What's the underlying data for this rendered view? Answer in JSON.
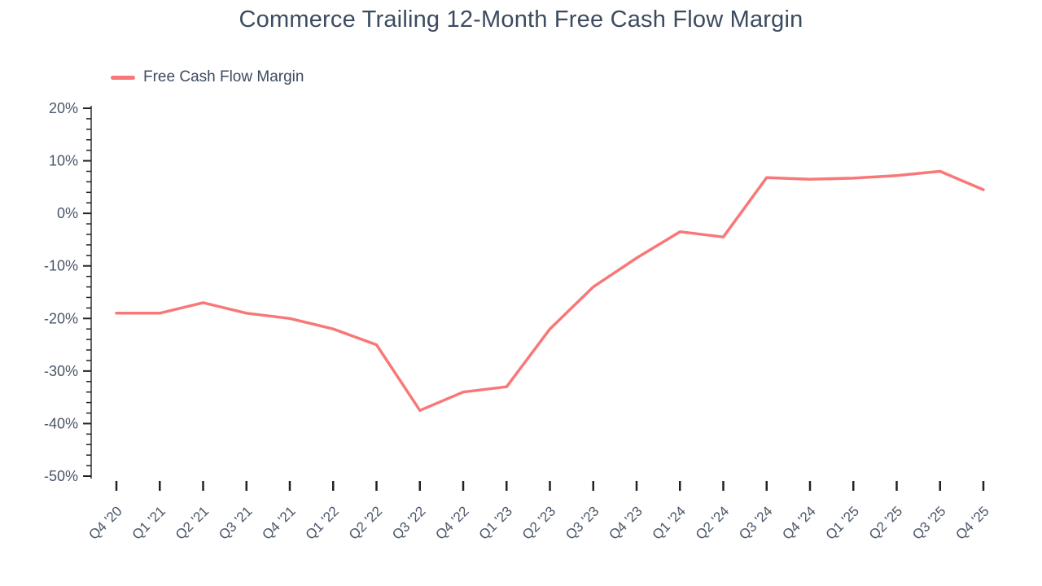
{
  "chart": {
    "title": "Commerce Trailing 12-Month Free Cash Flow Margin",
    "legend": {
      "label": "Free Cash Flow Margin"
    }
  },
  "colors": {
    "line": "#f87878",
    "title_text": "#3c4b60",
    "axis_text": "#4a5568",
    "tick_mark": "#1f2329"
  },
  "chart_data": {
    "type": "line",
    "title": "Commerce Trailing 12-Month Free Cash Flow Margin",
    "categories": [
      "Q4 '20",
      "Q1 '21",
      "Q2 '21",
      "Q3 '21",
      "Q4 '21",
      "Q1 '22",
      "Q2 '22",
      "Q3 '22",
      "Q4 '22",
      "Q1 '23",
      "Q2 '23",
      "Q3 '23",
      "Q4 '23",
      "Q1 '24",
      "Q2 '24",
      "Q3 '24",
      "Q4 '24",
      "Q1 '25",
      "Q2 '25",
      "Q3 '25",
      "Q4 '25"
    ],
    "series": [
      {
        "name": "Free Cash Flow Margin",
        "color": "#f87878",
        "values": [
          -19,
          -19,
          -17,
          -19,
          -20,
          -22,
          -25,
          -37.5,
          -34,
          -33,
          -22,
          -14,
          -8.5,
          -3.5,
          -4.5,
          6.8,
          6.5,
          6.7,
          7.2,
          8,
          4.5
        ]
      }
    ],
    "xlabel": "",
    "ylabel": "",
    "ylim": [
      -50,
      20
    ],
    "y_ticks": [
      20,
      10,
      0,
      -10,
      -20,
      -30,
      -40,
      -50
    ],
    "y_tick_labels": [
      "20%",
      "10%",
      "0%",
      "-10%",
      "-20%",
      "-30%",
      "-40%",
      "-50%"
    ],
    "y_minor_step": 2,
    "grid": false,
    "legend_position": "top-left"
  }
}
